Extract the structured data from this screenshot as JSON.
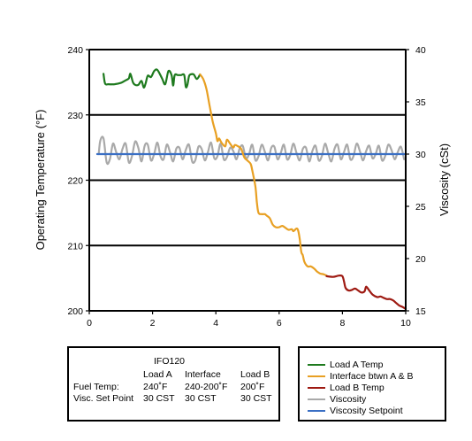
{
  "chart_data": {
    "type": "line",
    "xlabel": "",
    "ylabel": "Operating Temperature (°F)",
    "y2label": "Viscosity (cSt)",
    "xlim": [
      0,
      10
    ],
    "ylim": [
      200,
      240
    ],
    "y2lim": [
      15,
      40
    ],
    "x_ticks": [
      "0",
      "2",
      "4",
      "6",
      "8",
      "10"
    ],
    "y_ticks": [
      "200",
      "210",
      "220",
      "230",
      "240"
    ],
    "y2_ticks": [
      "15",
      "20",
      "25",
      "30",
      "35",
      "40"
    ],
    "grid": "horizontal",
    "legend_position": "bottom-right",
    "series": [
      {
        "name": "Load A Temp",
        "axis": "left",
        "color": "#1e7a1e",
        "x": [
          0.45,
          0.5,
          0.6,
          0.8,
          1.0,
          1.15,
          1.25,
          1.3,
          1.38,
          1.45,
          1.55,
          1.65,
          1.72,
          1.78,
          1.85,
          1.95,
          2.05,
          2.15,
          2.3,
          2.4,
          2.5,
          2.6,
          2.65,
          2.7,
          2.8,
          2.9,
          3.0,
          3.05,
          3.1,
          3.15,
          3.2,
          3.3,
          3.4,
          3.5
        ],
        "y": [
          236.3,
          234.8,
          234.7,
          234.7,
          234.9,
          235.3,
          235.6,
          236.3,
          235.0,
          234.6,
          234.6,
          235.2,
          234.2,
          234.8,
          236.0,
          235.8,
          236.7,
          236.9,
          235.6,
          234.7,
          236.7,
          236.1,
          234.5,
          236.1,
          236.1,
          236.1,
          236.1,
          234.3,
          234.6,
          235.9,
          236.2,
          236.2,
          235.5,
          236.2
        ]
      },
      {
        "name": "Interface btwn A & B",
        "axis": "left",
        "color": "#e8a023",
        "x": [
          3.5,
          3.6,
          3.7,
          3.8,
          3.9,
          4.0,
          4.05,
          4.1,
          4.15,
          4.2,
          4.3,
          4.35,
          4.45,
          4.55,
          4.6,
          4.7,
          4.8,
          4.9,
          5.0,
          5.1,
          5.15,
          5.25,
          5.3,
          5.35,
          5.45,
          5.55,
          5.6,
          5.7,
          5.8,
          5.9,
          6.0,
          6.1,
          6.2,
          6.3,
          6.4,
          6.45,
          6.55,
          6.6,
          6.65,
          6.7,
          6.75,
          6.8,
          6.9,
          7.0,
          7.1,
          7.2,
          7.3,
          7.4,
          7.5
        ],
        "y": [
          236.2,
          235.5,
          234.0,
          231.5,
          229.0,
          227.2,
          226.0,
          226.4,
          226.0,
          225.6,
          225.2,
          226.2,
          225.6,
          225.0,
          225.4,
          225.2,
          224.8,
          223.5,
          223.0,
          222.5,
          221.5,
          219.0,
          216.5,
          215.0,
          214.8,
          214.8,
          214.6,
          214.2,
          213.2,
          212.8,
          212.8,
          213.0,
          212.7,
          212.4,
          212.5,
          212.2,
          212.6,
          212.3,
          211.0,
          209.0,
          208.5,
          207.5,
          206.8,
          206.8,
          206.5,
          206.0,
          205.7,
          205.6,
          205.4
        ]
      },
      {
        "name": "Load B Temp",
        "axis": "left",
        "color": "#9e1a12",
        "x": [
          7.5,
          7.7,
          7.9,
          8.0,
          8.05,
          8.1,
          8.2,
          8.3,
          8.4,
          8.5,
          8.6,
          8.7,
          8.75,
          8.85,
          8.95,
          9.1,
          9.2,
          9.3,
          9.4,
          9.5,
          9.6,
          9.7,
          9.8,
          9.9,
          10.0
        ],
        "y": [
          205.3,
          205.2,
          205.4,
          205.3,
          204.5,
          203.5,
          203.1,
          203.2,
          203.4,
          203.1,
          202.8,
          203.0,
          203.7,
          203.1,
          202.5,
          202.1,
          202.2,
          202.0,
          201.8,
          201.8,
          201.6,
          201.2,
          200.8,
          200.6,
          200.3
        ]
      },
      {
        "name": "Viscosity",
        "axis": "right",
        "color": "#a9a9a9",
        "x": [
          0.3,
          0.35,
          0.45,
          0.55,
          0.65,
          0.75,
          0.85,
          0.95,
          1.05,
          1.15,
          1.25,
          1.35,
          1.45,
          1.55,
          1.65,
          1.75,
          1.85,
          1.95,
          2.05,
          2.15,
          2.25,
          2.35,
          2.45,
          2.55,
          2.65,
          2.75,
          2.85,
          2.95,
          3.05,
          3.15,
          3.25,
          3.35,
          3.45,
          3.55,
          3.65,
          3.75,
          3.85,
          3.95,
          4.05,
          4.15,
          4.25,
          4.35,
          4.45,
          4.55,
          4.65,
          4.75,
          4.85,
          4.95,
          5.05,
          5.15,
          5.25,
          5.35,
          5.45,
          5.55,
          5.65,
          5.75,
          5.85,
          5.95,
          6.05,
          6.15,
          6.25,
          6.35,
          6.45,
          6.55,
          6.65,
          6.75,
          6.85,
          6.95,
          7.05,
          7.15,
          7.25,
          7.35,
          7.45,
          7.55,
          7.65,
          7.75,
          7.85,
          7.95,
          8.05,
          8.15,
          8.25,
          8.35,
          8.45,
          8.55,
          8.65,
          8.75,
          8.85,
          8.95,
          9.05,
          9.15,
          9.25,
          9.35,
          9.45,
          9.55,
          9.65,
          9.75,
          9.85,
          9.95
        ],
        "y": [
          30.0,
          31.3,
          31.5,
          29.2,
          29.5,
          31.0,
          30.2,
          29.5,
          30.5,
          31.0,
          29.2,
          29.8,
          31.2,
          30.6,
          29.3,
          30.8,
          30.9,
          29.4,
          30.0,
          31.1,
          29.8,
          29.5,
          30.9,
          30.2,
          29.3,
          30.5,
          30.6,
          29.5,
          30.4,
          30.9,
          29.3,
          29.4,
          30.7,
          30.5,
          29.4,
          30.2,
          31.1,
          29.6,
          29.8,
          31.0,
          29.5,
          29.7,
          30.6,
          30.3,
          29.5,
          30.5,
          30.8,
          29.6,
          30.0,
          30.9,
          29.4,
          29.8,
          30.9,
          30.2,
          29.4,
          30.6,
          30.7,
          29.5,
          30.1,
          30.9,
          29.5,
          29.9,
          31.0,
          30.1,
          29.4,
          30.5,
          30.6,
          29.3,
          30.3,
          30.8,
          29.4,
          29.8,
          31.0,
          30.1,
          29.3,
          30.5,
          30.9,
          29.5,
          30.2,
          30.9,
          29.5,
          29.8,
          31.0,
          30.3,
          29.4,
          30.3,
          30.8,
          29.6,
          30.0,
          30.8,
          29.4,
          29.8,
          30.9,
          30.4,
          29.5,
          30.2,
          30.7,
          29.5
        ]
      },
      {
        "name": "Viscosity Setpoint",
        "axis": "right",
        "color": "#3a6fc4",
        "x": [
          0.25,
          10.0
        ],
        "y": [
          30.0,
          30.0
        ]
      }
    ]
  },
  "info_box": {
    "title": "IFO120",
    "col_load_a": "Load A",
    "col_interface": "Interface",
    "col_load_b": "Load B",
    "row1_label": "Fuel Temp:",
    "row1_load_a": "240˚F",
    "row1_interface": "240-200˚F",
    "row1_load_b": "200˚F",
    "row2_label": "Visc. Set Point",
    "row2_load_a": "30 CST",
    "row2_interface": "30 CST",
    "row2_load_b": "30 CST"
  },
  "legend": [
    {
      "label": "Load A Temp",
      "color": "#1e7a1e"
    },
    {
      "label": "Interface btwn A & B",
      "color": "#e8a023"
    },
    {
      "label": "Load B Temp",
      "color": "#9e1a12"
    },
    {
      "label": "Viscosity",
      "color": "#a9a9a9"
    },
    {
      "label": "Viscosity Setpoint",
      "color": "#3a6fc4"
    }
  ]
}
